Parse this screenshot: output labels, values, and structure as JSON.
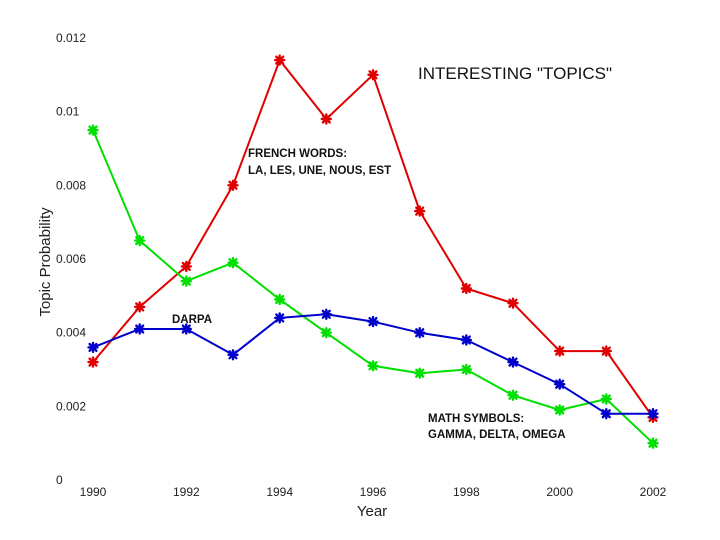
{
  "chart_data": {
    "type": "line",
    "title": "INTERESTING \"TOPICS\"",
    "xlabel": "Year",
    "ylabel": "Topic Probability",
    "x": [
      1990,
      1991,
      1992,
      1993,
      1994,
      1995,
      1996,
      1997,
      1998,
      1999,
      2000,
      2001,
      2002
    ],
    "x_ticks": [
      "1990",
      "1992",
      "1994",
      "1996",
      "1998",
      "2000",
      "2002"
    ],
    "y_ticks": [
      "0",
      "0.002",
      "0.004",
      "0.006",
      "0.008",
      "0.01",
      "0.012"
    ],
    "ylim": [
      0,
      0.012
    ],
    "xlim": [
      1990,
      2002
    ],
    "grid": false,
    "series": [
      {
        "color": "#e00000",
        "values": [
          0.0032,
          0.0047,
          0.0058,
          0.008,
          0.0114,
          0.0098,
          0.011,
          0.0073,
          0.0052,
          0.0048,
          0.0035,
          0.0035,
          0.0017
        ]
      },
      {
        "color": "#00e000",
        "values": [
          0.0095,
          0.0065,
          0.0054,
          0.0059,
          0.0049,
          0.004,
          0.0031,
          0.0029,
          0.003,
          0.0023,
          0.0019,
          0.0022,
          0.001
        ]
      },
      {
        "color": "#0000cc",
        "values": [
          0.0036,
          0.0041,
          0.0041,
          0.0034,
          0.0044,
          0.0045,
          0.0043,
          0.004,
          0.0038,
          0.0032,
          0.0026,
          0.0018,
          0.0018
        ]
      }
    ],
    "annotations": [
      {
        "id": "french",
        "lines": [
          "FRENCH WORDS:",
          "LA, LES, UNE, NOUS, EST"
        ]
      },
      {
        "id": "darpa",
        "lines": [
          "DARPA"
        ]
      },
      {
        "id": "math",
        "lines": [
          "MATH SYMBOLS:",
          "GAMMA, DELTA, OMEGA"
        ]
      }
    ]
  }
}
